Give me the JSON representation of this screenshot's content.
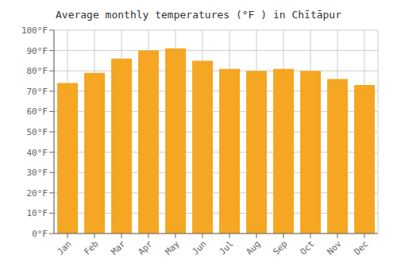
{
  "chart_data": {
    "type": "bar",
    "title": "Average monthly temperatures (°F ) in Chītāpur",
    "categories": [
      "Jan",
      "Feb",
      "Mar",
      "Apr",
      "May",
      "Jun",
      "Jul",
      "Aug",
      "Sep",
      "Oct",
      "Nov",
      "Dec"
    ],
    "values": [
      74,
      79,
      86,
      90,
      91,
      85,
      81,
      80,
      81,
      80,
      76,
      73
    ],
    "color": "#F5A623",
    "ylim": [
      0,
      100
    ],
    "yticks": [
      {
        "value": 0,
        "label": "0°F"
      },
      {
        "value": 10,
        "label": "10°F"
      },
      {
        "value": 20,
        "label": "20°F"
      },
      {
        "value": 30,
        "label": "30°F"
      },
      {
        "value": 40,
        "label": "40°F"
      },
      {
        "value": 50,
        "label": "50°F"
      },
      {
        "value": 60,
        "label": "60°F"
      },
      {
        "value": 70,
        "label": "70°F"
      },
      {
        "value": 80,
        "label": "80°F"
      },
      {
        "value": 90,
        "label": "90°F"
      },
      {
        "value": 100,
        "label": "100°F"
      }
    ],
    "grid": true
  }
}
